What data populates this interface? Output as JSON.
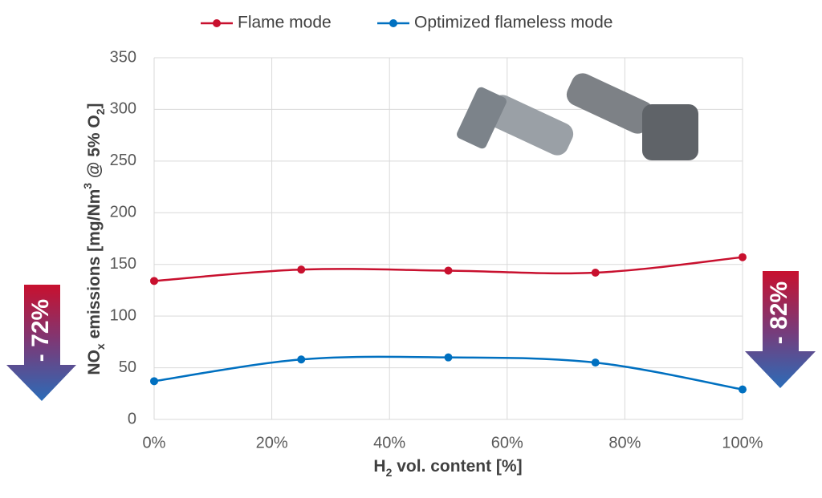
{
  "chart_data": {
    "type": "line",
    "x_label": [
      "H",
      "2",
      " vol. content [%]"
    ],
    "y_label": [
      "NO",
      "x",
      " emissions [mg/Nm",
      "3",
      " @ 5% O",
      "2",
      "]"
    ],
    "x": [
      0,
      25,
      50,
      75,
      100
    ],
    "series": [
      {
        "name": "Flame mode",
        "color": "#c8102e",
        "values": [
          134,
          145,
          144,
          142,
          157
        ]
      },
      {
        "name": "Optimized flameless mode",
        "color": "#0070c0",
        "values": [
          37,
          58,
          60,
          55,
          29
        ]
      }
    ],
    "xlim": [
      0,
      100
    ],
    "xticks": [
      {
        "value": 0,
        "label": "0%"
      },
      {
        "value": 20,
        "label": "20%"
      },
      {
        "value": 40,
        "label": "40%"
      },
      {
        "value": 60,
        "label": "60%"
      },
      {
        "value": 80,
        "label": "80%"
      },
      {
        "value": 100,
        "label": "100%"
      }
    ],
    "ylim": [
      0,
      350
    ],
    "yticks": [
      0,
      50,
      100,
      150,
      200,
      250,
      300,
      350
    ],
    "grid": true,
    "legend": "top",
    "annotations": [
      "- 72%",
      "- 82%"
    ]
  }
}
